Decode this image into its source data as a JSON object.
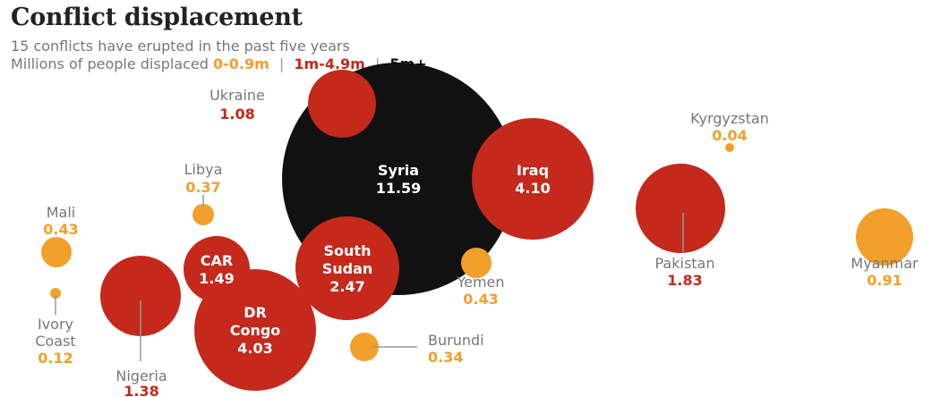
{
  "header": {
    "title": "Conflict displacement",
    "subtitle": "15 conflicts have erupted in the past five years",
    "legend_prefix": "Millions of people displaced",
    "legend_sep": "|",
    "legend": [
      {
        "label": "0-0.9m",
        "color": "#f29f2c"
      },
      {
        "label": "1m-4.9m",
        "color": "#c4291c"
      },
      {
        "label": "5m+",
        "color": "#111111"
      }
    ]
  },
  "chart_data": {
    "type": "bubble",
    "unit": "millions of people displaced",
    "colors": {
      "low": "#f29f2c",
      "mid": "#c4291c",
      "high": "#111111"
    },
    "points": [
      {
        "name": "Syria",
        "value": 11.59,
        "value_label": "11.59"
      },
      {
        "name": "Iraq",
        "value": 4.1,
        "value_label": "4.10"
      },
      {
        "name": "Ukraine",
        "value": 1.08,
        "value_label": "1.08"
      },
      {
        "name": "Kyrgyzstan",
        "value": 0.04,
        "value_label": "0.04"
      },
      {
        "name": "Libya",
        "value": 0.37,
        "value_label": "0.37"
      },
      {
        "name": "Mali",
        "value": 0.43,
        "value_label": "0.43"
      },
      {
        "name": "CAR",
        "value": 1.49,
        "value_label": "1.49"
      },
      {
        "name": "South Sudan",
        "value": 2.47,
        "value_label": "2.47"
      },
      {
        "name": "Yemen",
        "value": 0.43,
        "value_label": "0.43"
      },
      {
        "name": "Pakistan",
        "value": 1.83,
        "value_label": "1.83"
      },
      {
        "name": "Myanmar",
        "value": 0.91,
        "value_label": "0.91"
      },
      {
        "name": "Ivory Coast",
        "value": 0.12,
        "value_label": "0.12"
      },
      {
        "name": "Nigeria",
        "value": 1.38,
        "value_label": "1.38"
      },
      {
        "name": "DR Congo",
        "value": 4.03,
        "value_label": "4.03"
      },
      {
        "name": "Burundi",
        "value": 0.34,
        "value_label": "0.34"
      }
    ]
  }
}
